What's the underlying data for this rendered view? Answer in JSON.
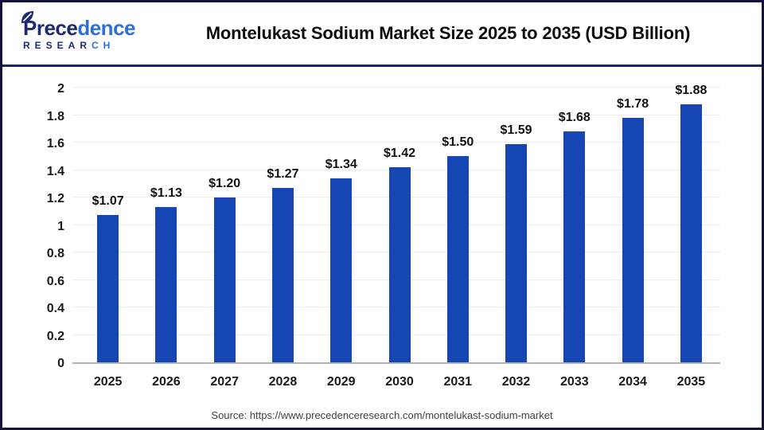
{
  "header": {
    "logo": {
      "name_dark": "Prece",
      "name_light": "dence",
      "subtitle_dark": "RESEAR",
      "subtitle_light": "CH"
    },
    "title": "Montelukast Sodium Market Size 2025 to 2035 (USD Billion)"
  },
  "footer": {
    "source": "Source: https://www.precedenceresearch.com/montelukast-sodium-market"
  },
  "chart_data": {
    "type": "bar",
    "title": "Montelukast Sodium Market Size 2025 to 2035 (USD Billion)",
    "categories": [
      "2025",
      "2026",
      "2027",
      "2028",
      "2029",
      "2030",
      "2031",
      "2032",
      "2033",
      "2034",
      "2035"
    ],
    "values": [
      1.07,
      1.13,
      1.2,
      1.27,
      1.34,
      1.42,
      1.5,
      1.59,
      1.68,
      1.78,
      1.88
    ],
    "value_labels": [
      "$1.07",
      "$1.13",
      "$1.20",
      "$1.27",
      "$1.34",
      "$1.42",
      "$1.50",
      "$1.59",
      "$1.68",
      "$1.78",
      "$1.88"
    ],
    "xlabel": "",
    "ylabel": "",
    "ylim": [
      0,
      2
    ],
    "yticks": [
      0,
      0.2,
      0.4,
      0.6,
      0.8,
      1,
      1.2,
      1.4,
      1.6,
      1.8,
      2
    ],
    "ytick_labels": [
      "0",
      "0.2",
      "0.4",
      "0.6",
      "0.8",
      "1",
      "1.2",
      "1.4",
      "1.6",
      "1.8",
      "2"
    ],
    "grid": true,
    "legend": "none",
    "colors": {
      "bar": "#1546b4",
      "gridline": "#ececec",
      "axis_line": "#b0b0b0",
      "value_label": "#111111",
      "tick_label": "#1a1a1a",
      "logo_dark": "#1e2a6e",
      "logo_light": "#2f6fd4"
    }
  }
}
